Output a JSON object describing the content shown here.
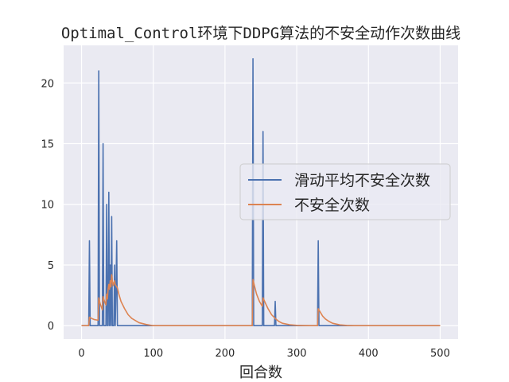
{
  "chart_data": {
    "type": "line",
    "title": "Optimal_Control环境下DDPG算法的不安全动作次数曲线",
    "xlabel": "回合数",
    "ylabel": "",
    "xlim": [
      -25,
      525
    ],
    "ylim": [
      -1.1,
      23.1
    ],
    "xticks": [
      0,
      100,
      200,
      300,
      400,
      500
    ],
    "yticks": [
      0,
      5,
      10,
      15,
      20
    ],
    "grid": true,
    "legend_position": "center-right",
    "series": [
      {
        "name": "滑动平均不安全次数",
        "color": "#4c72b0",
        "x": [
          0,
          10,
          11,
          12,
          13,
          23,
          24,
          25,
          26,
          29,
          30,
          31,
          32,
          34,
          35,
          36,
          37,
          38,
          39,
          40,
          41,
          42,
          43,
          44,
          45,
          46,
          47,
          48,
          49,
          50,
          51,
          52,
          53,
          238,
          239,
          240,
          241,
          252,
          253,
          254,
          255,
          269,
          270,
          271,
          272,
          329,
          330,
          331,
          332,
          500
        ],
        "y": [
          0,
          0,
          7,
          0,
          0,
          0,
          21,
          0,
          0,
          0,
          15,
          0,
          0,
          0,
          10,
          0,
          0,
          11,
          0,
          5,
          0,
          9,
          0,
          0,
          0,
          5,
          0,
          3,
          7,
          0,
          0,
          0,
          0,
          0,
          22,
          0,
          0,
          0,
          16,
          0,
          0,
          0,
          2,
          0,
          0,
          0,
          7,
          0,
          0,
          0
        ]
      },
      {
        "name": "不安全次数",
        "color": "#dd8452",
        "x": [
          0,
          10,
          11,
          14,
          18,
          23,
          24,
          26,
          29,
          30,
          32,
          34,
          35,
          36,
          37,
          38,
          39,
          40,
          41,
          42,
          43,
          44,
          46,
          47,
          48,
          50,
          52,
          55,
          60,
          65,
          70,
          80,
          90,
          100,
          238,
          239,
          241,
          244,
          248,
          252,
          253,
          256,
          260,
          265,
          270,
          275,
          280,
          290,
          300,
          310,
          320,
          329,
          330,
          333,
          336,
          340,
          345,
          350,
          360,
          370,
          380,
          500
        ],
        "y": [
          0,
          0,
          0.7,
          0.6,
          0.5,
          0.45,
          2.3,
          1.8,
          1.3,
          2.4,
          2.0,
          1.7,
          2.6,
          2.2,
          3.0,
          3.4,
          3.0,
          3.7,
          3.2,
          4.2,
          3.7,
          3.3,
          3.7,
          3.4,
          3.3,
          3.1,
          2.6,
          2.0,
          1.4,
          0.9,
          0.6,
          0.25,
          0.1,
          0,
          0,
          3.8,
          3.3,
          2.6,
          2.0,
          1.6,
          2.3,
          1.9,
          1.4,
          0.9,
          0.6,
          0.35,
          0.2,
          0.08,
          0.03,
          0.01,
          0,
          0,
          1.4,
          1.1,
          0.8,
          0.55,
          0.35,
          0.2,
          0.07,
          0.02,
          0,
          0
        ]
      }
    ]
  }
}
